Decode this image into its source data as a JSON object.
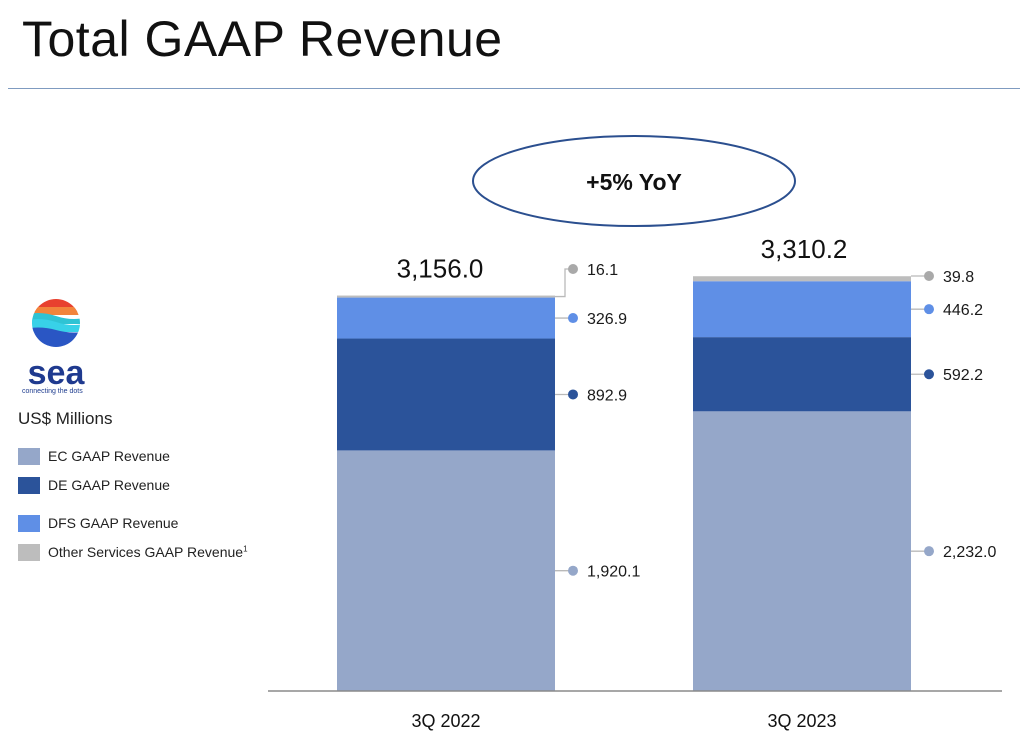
{
  "page": {
    "title": "Total GAAP Revenue",
    "units": "US$ Millions",
    "logo": {
      "word": "sea",
      "tagline": "connecting the dots"
    }
  },
  "callout": {
    "text": "+5% YoY"
  },
  "legend": [
    {
      "label": "EC GAAP Revenue",
      "color": "#95a7c9"
    },
    {
      "label": "DE GAAP Revenue",
      "color": "#2b539a"
    },
    {
      "label": "DFS GAAP Revenue",
      "color": "#5f8fe6"
    },
    {
      "label": "Other Services GAAP Revenue",
      "sup": "1",
      "color": "#bdbdbd"
    }
  ],
  "chart_data": {
    "type": "bar",
    "stacked": true,
    "categories": [
      "3Q 2022",
      "3Q 2023"
    ],
    "totals": [
      "3,156.0",
      "3,310.2"
    ],
    "series": [
      {
        "name": "EC GAAP Revenue",
        "values": [
          1920.1,
          2232.0
        ],
        "labels": [
          "1,920.1",
          "2,232.0"
        ],
        "color": "#95a7c9",
        "marker": "#95a7c9"
      },
      {
        "name": "DE GAAP Revenue",
        "values": [
          892.9,
          592.2
        ],
        "labels": [
          "892.9",
          "592.2"
        ],
        "color": "#2b539a",
        "marker": "#2b539a"
      },
      {
        "name": "DFS GAAP Revenue",
        "values": [
          326.9,
          446.2
        ],
        "labels": [
          "326.9",
          "446.2"
        ],
        "color": "#5f8fe6",
        "marker": "#5f8fe6"
      },
      {
        "name": "Other Services GAAP Revenue",
        "values": [
          16.1,
          39.8
        ],
        "labels": [
          "16.1",
          "39.8"
        ],
        "color": "#bdbdbd",
        "marker": "#a9a9a9"
      }
    ],
    "ylim": [
      0,
      3700
    ],
    "grid": false,
    "legend_position": "left"
  }
}
